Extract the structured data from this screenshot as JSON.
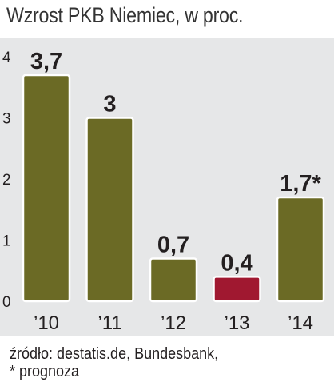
{
  "title": "Wzrost PKB Niemiec, w proc.",
  "source_line1": "źródło: destatis.de, Bundesbank,",
  "source_line2": "* prognoza",
  "colors": {
    "bar": "#6b6a25",
    "bar_highlight": "#a01830",
    "background": "#e6e7e8",
    "bar_border": "#ffffff"
  },
  "chart_data": {
    "type": "bar",
    "title": "Wzrost PKB Niemiec, w proc.",
    "xlabel": "",
    "ylabel": "",
    "categories": [
      "’10",
      "’11",
      "’12",
      "’13",
      "’14"
    ],
    "values": [
      3.7,
      3,
      0.7,
      0.4,
      1.7
    ],
    "data_labels": [
      "3,7",
      "3",
      "0,7",
      "0,4",
      "1,7*"
    ],
    "highlight_index": 3,
    "ylim": [
      0,
      4
    ],
    "yticks": [
      0,
      1,
      2,
      3,
      4
    ],
    "grid": false
  }
}
